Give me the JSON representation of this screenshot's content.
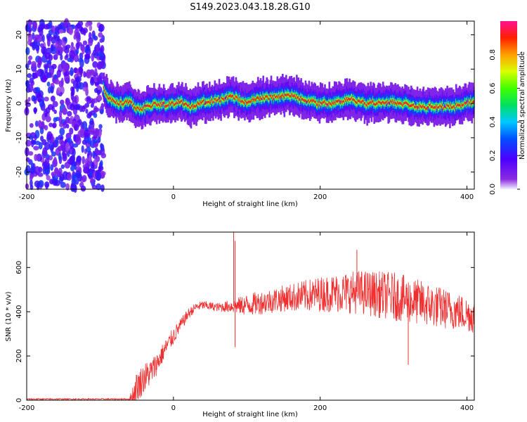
{
  "title": "S149.2023.043.18.28.G10",
  "colors": {
    "snr_line": "#f03030",
    "frame": "#000000",
    "background": "#ffffff"
  },
  "chart_data": [
    {
      "type": "heatmap",
      "xlabel": "Height of straight line (km)",
      "ylabel": "Frequency (Hz)",
      "xlim": [
        -200,
        410
      ],
      "ylim": [
        -25,
        24
      ],
      "xticks": [
        -200,
        0,
        200,
        400
      ],
      "yticks": [
        -20,
        -10,
        0,
        10,
        20
      ],
      "colorbar": {
        "label": "Normalized spectral amplitude",
        "range": [
          0,
          1
        ],
        "ticks": [
          0.0,
          0.2,
          0.4,
          0.6,
          0.8
        ],
        "colormap": "rainbow (violet-blue-cyan-green-yellow-orange-red-magenta)"
      },
      "noise_region": {
        "x_range": [
          -200,
          -95
        ],
        "amplitude": "low (0.1-0.3)"
      },
      "ridge": {
        "description": "narrow high-amplitude band near 0 Hz",
        "x": [
          -95,
          -90,
          -80,
          -70,
          -60,
          -50,
          -40,
          -30,
          -20,
          -10,
          0,
          10,
          20,
          30,
          40,
          50,
          60,
          70,
          80,
          90,
          100,
          120,
          140,
          160,
          180,
          200,
          220,
          240,
          260,
          280,
          300,
          320,
          340,
          360,
          380,
          400,
          410
        ],
        "y": [
          4,
          2,
          0.5,
          0,
          0.5,
          -1.5,
          -1.5,
          -0.5,
          0,
          -0.5,
          0,
          0.5,
          -1,
          -0.5,
          0.5,
          0.5,
          1,
          1.5,
          2,
          1,
          0.5,
          1.5,
          2,
          2.5,
          1,
          0,
          0,
          1.5,
          0,
          0,
          0.5,
          -0.5,
          -1,
          -1,
          -1,
          0,
          0.5
        ]
      }
    },
    {
      "type": "line",
      "xlabel": "Height of straight line (km)",
      "ylabel": "SNR (10 * v/v)",
      "xlim": [
        -200,
        410
      ],
      "ylim": [
        0,
        760
      ],
      "xticks": [
        -200,
        0,
        200,
        400
      ],
      "yticks": [
        0,
        200,
        400,
        600
      ],
      "series": [
        {
          "values_envelope": {
            "x": [
              -200,
              -150,
              -100,
              -60,
              -55,
              -50,
              -40,
              -30,
              -20,
              -10,
              0,
              10,
              20,
              30,
              40,
              60,
              80,
              100,
              150,
              200,
              250,
              300,
              350,
              400,
              410
            ],
            "y_mean": [
              5,
              5,
              5,
              5,
              20,
              60,
              100,
              130,
              180,
              240,
              290,
              340,
              390,
              420,
              430,
              420,
              425,
              430,
              460,
              480,
              490,
              470,
              430,
              390,
              380
            ],
            "y_spread": [
              3,
              3,
              3,
              3,
              60,
              70,
              70,
              60,
              50,
              40,
              40,
              30,
              25,
              20,
              20,
              20,
              30,
              50,
              60,
              80,
              100,
              110,
              100,
              80,
              80
            ]
          },
          "spikes": [
            {
              "x": 82,
              "y": 760
            },
            {
              "x": 84,
              "y": 240
            },
            {
              "x": 84,
              "y": 720
            },
            {
              "x": 250,
              "y": 680
            },
            {
              "x": 320,
              "y": 160
            }
          ]
        }
      ]
    }
  ]
}
